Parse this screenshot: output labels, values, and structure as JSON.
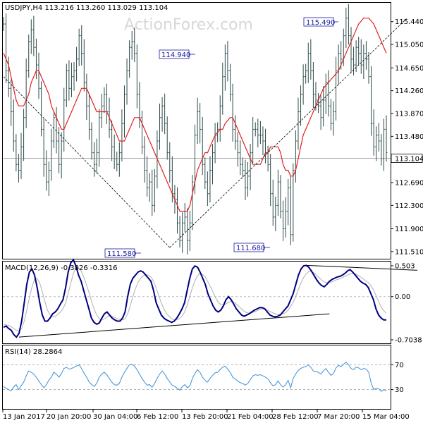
{
  "watermark": "ActionForex.com",
  "chart_data": [
    {
      "type": "bar",
      "title": "USDJPY,H4  113.216 113.260 113.029 113.104",
      "ylim": [
        111.4,
        115.75
      ],
      "yticks": [
        "115.440",
        "115.050",
        "114.650",
        "114.260",
        "113.870",
        "113.480",
        "112.690",
        "112.300",
        "111.900",
        "111.510"
      ],
      "last_price": "113.104",
      "annotations": [
        "115.490",
        "114.940",
        "111.580",
        "111.680"
      ],
      "close_series": [
        115.4,
        114.6,
        114.3,
        113.9,
        113.4,
        113.0,
        112.9,
        113.3,
        113.8,
        114.6,
        115.1,
        115.3,
        115.0,
        114.7,
        114.3,
        113.6,
        113.0,
        112.7,
        112.9,
        113.4,
        113.8,
        113.4,
        113.0,
        113.4,
        114.1,
        114.6,
        114.3,
        114.5,
        114.6,
        114.8,
        115.2,
        114.9,
        114.4,
        114.0,
        113.6,
        113.2,
        113.0,
        113.2,
        113.8,
        114.0,
        114.2,
        113.9,
        113.6,
        113.3,
        113.1,
        113.0,
        113.2,
        113.7,
        114.2,
        114.6,
        115.0,
        115.1,
        114.9,
        114.2,
        113.8,
        113.3,
        112.9,
        112.6,
        112.7,
        112.3,
        112.8,
        113.4,
        113.8,
        114.0,
        113.7,
        113.2,
        112.9,
        112.5,
        112.4,
        112.0,
        111.7,
        112.0,
        112.1,
        111.7,
        112.0,
        112.7,
        113.5,
        113.9,
        113.6,
        113.0,
        112.7,
        112.5,
        112.9,
        113.2,
        113.5,
        113.6,
        114.0,
        114.5,
        114.9,
        114.6,
        114.2,
        113.6,
        113.4,
        113.2,
        113.0,
        112.9,
        112.6,
        112.8,
        113.2,
        113.6,
        113.6,
        113.5,
        113.5,
        113.4,
        113.2,
        113.0,
        112.5,
        112.1,
        112.3,
        112.7,
        112.2,
        111.9,
        112.2,
        112.6,
        111.8,
        112.9,
        113.4,
        113.9,
        114.2,
        114.5,
        114.6,
        114.9,
        114.6,
        114.2,
        114.1,
        114.0,
        113.8,
        114.1,
        114.4,
        114.0,
        113.7,
        113.9,
        114.6,
        114.9,
        114.8,
        115.2,
        115.5,
        115.2,
        114.8,
        114.7,
        115.0,
        114.9,
        114.7,
        114.9,
        114.8,
        114.5,
        113.7,
        113.3,
        113.5,
        113.4,
        113.1,
        113.6,
        113.2
      ],
      "ma_series": [
        114.9,
        114.8,
        114.7,
        114.5,
        114.3,
        114.1,
        114.0,
        114.0,
        114.0,
        114.1,
        114.2,
        114.4,
        114.5,
        114.6,
        114.6,
        114.5,
        114.4,
        114.3,
        114.2,
        114.0,
        113.9,
        113.8,
        113.7,
        113.6,
        113.6,
        113.7,
        113.8,
        113.9,
        114.0,
        114.1,
        114.2,
        114.3,
        114.3,
        114.3,
        114.2,
        114.1,
        114.0,
        113.9,
        113.9,
        113.9,
        113.9,
        113.9,
        113.8,
        113.7,
        113.6,
        113.5,
        113.4,
        113.4,
        113.4,
        113.5,
        113.6,
        113.7,
        113.8,
        113.8,
        113.8,
        113.7,
        113.6,
        113.5,
        113.4,
        113.3,
        113.2,
        113.1,
        113.0,
        112.9,
        112.8,
        112.7,
        112.6,
        112.5,
        112.4,
        112.3,
        112.2,
        112.2,
        112.2,
        112.2,
        112.3,
        112.5,
        112.7,
        112.9,
        113.0,
        113.1,
        113.2,
        113.2,
        113.3,
        113.4,
        113.5,
        113.55,
        113.6,
        113.6,
        113.7,
        113.75,
        113.8,
        113.8,
        113.7,
        113.6,
        113.5,
        113.4,
        113.3,
        113.2,
        113.1,
        113.0,
        113.0,
        113.0,
        113.0,
        113.1,
        113.2,
        113.2,
        113.3,
        113.3,
        113.3,
        113.3,
        113.2,
        113.0,
        112.9,
        112.9,
        112.8,
        112.8,
        112.9,
        113.1,
        113.3,
        113.5,
        113.6,
        113.7,
        113.8,
        113.9,
        114.0,
        114.1,
        114.2,
        114.3,
        114.35,
        114.4,
        114.45,
        114.5,
        114.55,
        114.6,
        114.7,
        114.8,
        114.9,
        115.0,
        115.1,
        115.2,
        115.3,
        115.4,
        115.45,
        115.5,
        115.5,
        115.5,
        115.45,
        115.4,
        115.3,
        115.2,
        115.1,
        115.0,
        114.9
      ],
      "trendlines": [
        {
          "points": [
            [
              0,
              114.5
            ],
            [
              66,
              111.58
            ]
          ],
          "style": "dashed"
        },
        {
          "points": [
            [
              66,
              111.58
            ],
            [
              160,
              115.49
            ]
          ],
          "style": "dashed"
        }
      ]
    },
    {
      "type": "line",
      "title": "MACD(12,26,9) -0.3826 -0.3316",
      "ylim": [
        -0.75,
        0.56
      ],
      "yticks": [
        "0.503",
        "0.00",
        "-0.7038"
      ],
      "macd": [
        -0.5,
        -0.48,
        -0.52,
        -0.55,
        -0.62,
        -0.66,
        -0.6,
        -0.4,
        -0.1,
        0.2,
        0.4,
        0.45,
        0.35,
        0.15,
        -0.1,
        -0.3,
        -0.4,
        -0.4,
        -0.35,
        -0.28,
        -0.25,
        -0.2,
        -0.12,
        -0.05,
        0.15,
        0.4,
        0.55,
        0.6,
        0.5,
        0.35,
        0.25,
        0.1,
        -0.05,
        -0.2,
        -0.35,
        -0.42,
        -0.45,
        -0.43,
        -0.35,
        -0.28,
        -0.25,
        -0.3,
        -0.35,
        -0.38,
        -0.4,
        -0.4,
        -0.35,
        -0.25,
        0.0,
        0.2,
        0.3,
        0.35,
        0.4,
        0.42,
        0.4,
        0.35,
        0.3,
        0.25,
        0.1,
        -0.1,
        -0.2,
        -0.3,
        -0.35,
        -0.38,
        -0.4,
        -0.42,
        -0.4,
        -0.35,
        -0.28,
        -0.2,
        -0.1,
        0.1,
        0.3,
        0.45,
        0.5,
        0.48,
        0.4,
        0.3,
        0.2,
        0.05,
        -0.05,
        -0.15,
        -0.22,
        -0.25,
        -0.22,
        -0.15,
        -0.05,
        0.0,
        -0.05,
        -0.12,
        -0.2,
        -0.25,
        -0.3,
        -0.32,
        -0.3,
        -0.28,
        -0.25,
        -0.22,
        -0.2,
        -0.18,
        -0.18,
        -0.2,
        -0.25,
        -0.3,
        -0.32,
        -0.33,
        -0.32,
        -0.3,
        -0.25,
        -0.2,
        -0.15,
        -0.05,
        0.05,
        0.2,
        0.35,
        0.45,
        0.5,
        0.51,
        0.48,
        0.42,
        0.35,
        0.28,
        0.22,
        0.18,
        0.16,
        0.2,
        0.25,
        0.28,
        0.3,
        0.32,
        0.33,
        0.35,
        0.38,
        0.42,
        0.44,
        0.4,
        0.35,
        0.3,
        0.25,
        0.22,
        0.2,
        0.15,
        0.05,
        -0.05,
        -0.2,
        -0.3,
        -0.35,
        -0.38,
        -0.38
      ],
      "signal": [
        -0.45,
        -0.46,
        -0.47,
        -0.49,
        -0.52,
        -0.55,
        -0.56,
        -0.52,
        -0.4,
        -0.22,
        -0.02,
        0.16,
        0.28,
        0.3,
        0.22,
        0.08,
        -0.08,
        -0.22,
        -0.3,
        -0.33,
        -0.32,
        -0.29,
        -0.25,
        -0.2,
        -0.1,
        0.05,
        0.22,
        0.38,
        0.47,
        0.47,
        0.42,
        0.32,
        0.2,
        0.07,
        -0.07,
        -0.2,
        -0.3,
        -0.36,
        -0.38,
        -0.36,
        -0.33,
        -0.31,
        -0.32,
        -0.34,
        -0.36,
        -0.38,
        -0.38,
        -0.36,
        -0.28,
        -0.15,
        0.0,
        0.13,
        0.23,
        0.3,
        0.34,
        0.36,
        0.35,
        0.32,
        0.25,
        0.14,
        0.02,
        -0.1,
        -0.2,
        -0.27,
        -0.32,
        -0.36,
        -0.38,
        -0.38,
        -0.36,
        -0.32,
        -0.25,
        -0.14,
        0.0,
        0.14,
        0.26,
        0.34,
        0.38,
        0.36,
        0.32,
        0.24,
        0.16,
        0.07,
        -0.02,
        -0.09,
        -0.13,
        -0.14,
        -0.12,
        -0.09,
        -0.08,
        -0.09,
        -0.12,
        -0.16,
        -0.2,
        -0.24,
        -0.26,
        -0.27,
        -0.26,
        -0.25,
        -0.23,
        -0.21,
        -0.2,
        -0.2,
        -0.22,
        -0.24,
        -0.26,
        -0.28,
        -0.29,
        -0.29,
        -0.28,
        -0.26,
        -0.22,
        -0.16,
        -0.09,
        0.01,
        0.12,
        0.22,
        0.31,
        0.37,
        0.41,
        0.41,
        0.39,
        0.35,
        0.31,
        0.27,
        0.24,
        0.23,
        0.23,
        0.24,
        0.26,
        0.28,
        0.29,
        0.31,
        0.33,
        0.35,
        0.37,
        0.38,
        0.37,
        0.35,
        0.32,
        0.29,
        0.26,
        0.23,
        0.18,
        0.11,
        0.02,
        -0.08,
        -0.17,
        -0.23,
        -0.27
      ],
      "trendlines": [
        {
          "points": [
            [
              6,
              -0.66
            ],
            [
              126,
              -0.28
            ]
          ],
          "style": "solid"
        },
        {
          "points": [
            [
              117,
              0.51
            ],
            [
              160,
              0.43
            ]
          ],
          "style": "solid"
        }
      ]
    },
    {
      "type": "line",
      "title": "RSI(14) 28.2864",
      "ylim": [
        0,
        100
      ],
      "yticks": [
        "70",
        "30"
      ],
      "levels": [
        70,
        30
      ],
      "values": [
        35,
        32,
        30,
        28,
        34,
        38,
        30,
        36,
        42,
        52,
        60,
        58,
        55,
        50,
        44,
        38,
        33,
        38,
        45,
        50,
        58,
        55,
        50,
        56,
        64,
        66,
        63,
        64,
        66,
        68,
        70,
        64,
        56,
        50,
        42,
        38,
        35,
        40,
        50,
        55,
        58,
        54,
        48,
        42,
        38,
        37,
        40,
        50,
        58,
        64,
        70,
        71,
        68,
        62,
        55,
        48,
        42,
        37,
        38,
        34,
        40,
        48,
        55,
        60,
        55,
        48,
        42,
        37,
        35,
        32,
        29,
        35,
        38,
        33,
        36,
        48,
        56,
        62,
        58,
        50,
        45,
        42,
        48,
        53,
        57,
        58,
        62,
        66,
        68,
        63,
        58,
        50,
        47,
        44,
        41,
        40,
        37,
        40,
        46,
        52,
        54,
        53,
        54,
        52,
        50,
        47,
        41,
        36,
        38,
        44,
        38,
        34,
        38,
        45,
        33,
        48,
        55,
        61,
        64,
        66,
        67,
        70,
        66,
        60,
        59,
        58,
        55,
        60,
        64,
        58,
        53,
        56,
        65,
        69,
        67,
        71,
        74,
        70,
        64,
        62,
        66,
        65,
        62,
        64,
        63,
        58,
        40,
        30,
        32,
        31,
        27,
        30,
        28
      ]
    }
  ],
  "x_labels": [
    "13 Jan 2017",
    "20 Jan 20:00",
    "30 Jan 04:00",
    "6 Feb 12:00",
    "13 Feb 20:00",
    "21 Feb 04:00",
    "28 Feb 12:00",
    "7 Mar 20:00",
    "15 Mar 04:00"
  ]
}
